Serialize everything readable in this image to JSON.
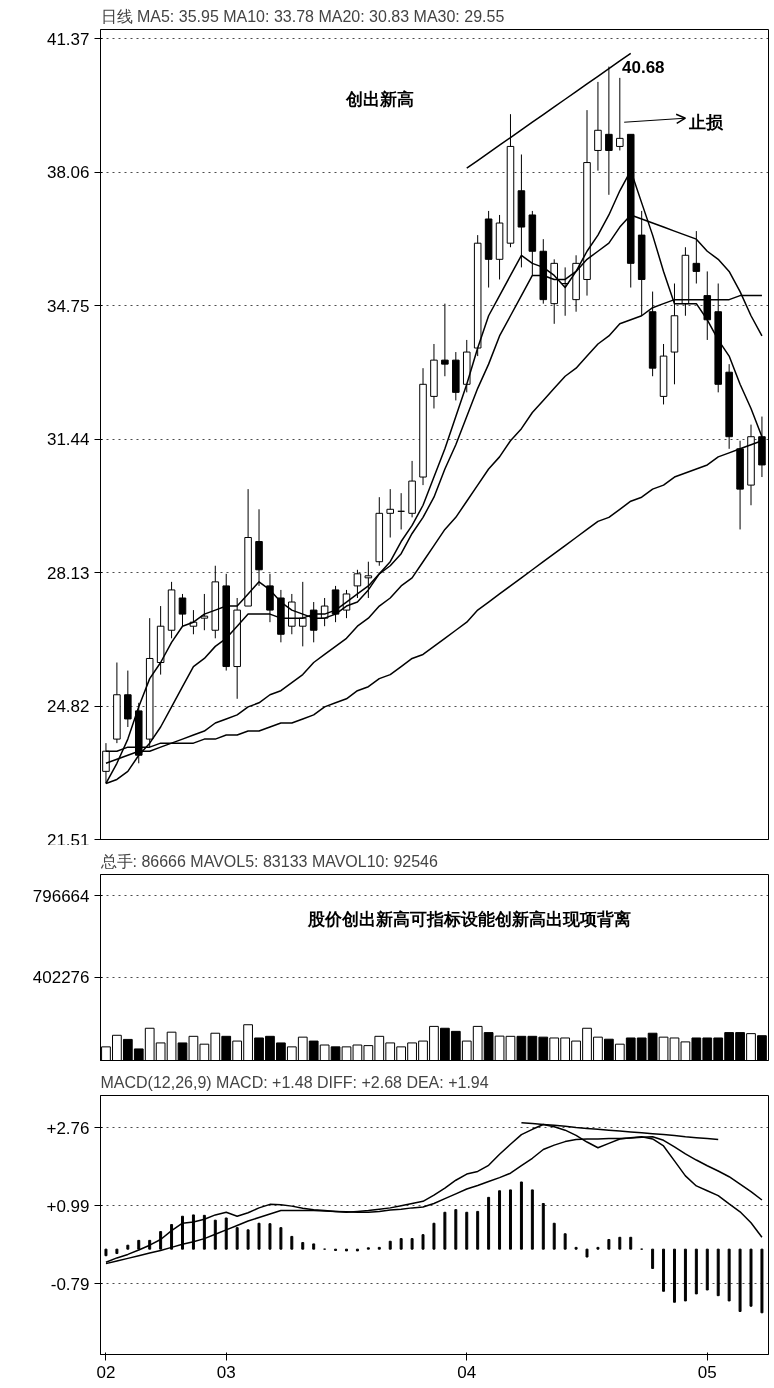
{
  "chart_data": [
    {
      "type": "candlestick",
      "title": "日线 MA5: 35.95 MA10: 33.78 MA20: 30.83 MA30: 29.55",
      "tick_labels": "y",
      "grid": "y",
      "ylim": [
        21.51,
        41.6
      ],
      "yticks": [
        41.37,
        38.06,
        34.75,
        31.44,
        28.13,
        24.82,
        21.51
      ],
      "categories": [
        "02",
        null,
        null,
        null,
        null,
        null,
        null,
        null,
        null,
        null,
        null,
        "03",
        null,
        null,
        null,
        null,
        null,
        null,
        null,
        null,
        null,
        null,
        null,
        null,
        null,
        null,
        null,
        null,
        null,
        null,
        null,
        null,
        null,
        "04",
        null,
        null,
        null,
        null,
        null,
        null,
        null,
        null,
        null,
        null,
        null,
        null,
        null,
        null,
        null,
        null,
        null,
        null,
        null,
        null,
        null,
        "05",
        null,
        null,
        null,
        null,
        null
      ],
      "ohlc": [
        [
          23.2,
          23.9,
          22.9,
          23.7
        ],
        [
          24.0,
          25.9,
          23.9,
          25.1
        ],
        [
          25.1,
          25.7,
          24.3,
          24.5
        ],
        [
          24.7,
          24.9,
          23.4,
          23.6
        ],
        [
          24.0,
          27.0,
          23.8,
          26.0
        ],
        [
          25.9,
          27.3,
          25.6,
          26.8
        ],
        [
          26.7,
          27.9,
          26.5,
          27.7
        ],
        [
          27.5,
          27.6,
          26.8,
          27.1
        ],
        [
          26.8,
          27.2,
          26.6,
          26.9
        ],
        [
          27.0,
          27.6,
          26.7,
          27.05
        ],
        [
          26.7,
          28.3,
          26.5,
          27.9
        ],
        [
          27.8,
          28.1,
          25.7,
          25.8
        ],
        [
          25.8,
          27.5,
          25.0,
          27.2
        ],
        [
          27.3,
          30.2,
          27.3,
          29.0
        ],
        [
          28.9,
          29.7,
          27.8,
          28.2
        ],
        [
          27.8,
          28.1,
          26.9,
          27.2
        ],
        [
          27.5,
          27.7,
          26.4,
          26.6
        ],
        [
          26.8,
          27.6,
          26.6,
          27.4
        ],
        [
          26.8,
          27.9,
          26.3,
          27.0
        ],
        [
          27.2,
          27.4,
          26.4,
          26.7
        ],
        [
          27.0,
          27.5,
          26.8,
          27.3
        ],
        [
          27.7,
          27.8,
          26.9,
          27.1
        ],
        [
          27.2,
          27.7,
          27.0,
          27.6
        ],
        [
          27.8,
          28.2,
          27.5,
          28.1
        ],
        [
          28.0,
          28.4,
          27.5,
          28.05
        ],
        [
          28.4,
          30.0,
          28.3,
          29.6
        ],
        [
          29.6,
          30.2,
          29.0,
          29.7
        ],
        [
          29.65,
          30.1,
          29.2,
          29.65
        ],
        [
          29.6,
          30.9,
          29.5,
          30.4
        ],
        [
          30.5,
          33.2,
          30.3,
          32.8
        ],
        [
          32.5,
          33.8,
          32.2,
          33.4
        ],
        [
          33.4,
          34.8,
          33.0,
          33.3
        ],
        [
          33.4,
          33.6,
          32.4,
          32.6
        ],
        [
          32.8,
          33.9,
          32.6,
          33.6
        ],
        [
          33.7,
          36.5,
          33.5,
          36.3
        ],
        [
          36.9,
          37.1,
          35.2,
          35.9
        ],
        [
          35.9,
          37.0,
          35.4,
          36.8
        ],
        [
          36.3,
          39.5,
          36.2,
          38.7
        ],
        [
          37.6,
          38.5,
          35.7,
          36.7
        ],
        [
          37.0,
          37.1,
          35.5,
          36.1
        ],
        [
          36.1,
          36.4,
          34.8,
          34.9
        ],
        [
          34.8,
          35.9,
          34.3,
          35.8
        ],
        [
          35.3,
          35.7,
          34.5,
          35.3
        ],
        [
          34.9,
          36.0,
          34.6,
          35.8
        ],
        [
          35.4,
          39.6,
          35.0,
          38.3
        ],
        [
          38.6,
          40.3,
          38.1,
          39.1
        ],
        [
          39.0,
          40.68,
          37.5,
          38.6
        ],
        [
          38.7,
          40.4,
          38.6,
          38.9
        ],
        [
          39.0,
          39.0,
          35.2,
          35.8
        ],
        [
          36.5,
          37.1,
          34.5,
          35.4
        ],
        [
          34.6,
          35.1,
          33.0,
          33.2
        ],
        [
          32.5,
          33.8,
          32.3,
          33.5
        ],
        [
          33.6,
          35.3,
          32.8,
          34.5
        ],
        [
          34.8,
          36.2,
          34.5,
          36.0
        ],
        [
          35.8,
          36.6,
          35.3,
          35.6
        ],
        [
          35.0,
          35.6,
          33.9,
          34.4
        ],
        [
          34.6,
          35.3,
          32.6,
          32.8
        ],
        [
          33.1,
          33.3,
          31.2,
          31.5
        ],
        [
          31.2,
          31.4,
          29.2,
          30.2
        ],
        [
          30.3,
          31.8,
          29.8,
          31.5
        ],
        [
          31.5,
          32.0,
          30.5,
          30.8
        ]
      ],
      "series": [
        {
          "type": "line",
          "color": "#000000",
          "values": [
            22.9,
            23.4,
            24.0,
            24.8,
            25.5,
            25.9,
            26.4,
            26.8,
            26.9,
            27.1,
            27.2,
            27.3,
            27.3,
            27.6,
            27.9,
            27.7,
            27.4,
            27.2,
            27.1,
            27.0,
            27.0,
            27.1,
            27.3,
            27.4,
            27.7,
            28.1,
            28.4,
            28.9,
            29.3,
            29.8,
            30.5,
            31.2,
            32.0,
            32.8,
            33.7,
            34.5,
            35.0,
            35.5,
            36.0,
            35.8,
            35.7,
            35.5,
            35.2,
            35.6,
            36.1,
            36.5,
            37.0,
            37.6,
            38.1,
            37.3,
            36.5,
            35.6,
            34.8,
            34.8,
            34.8,
            34.4,
            33.9,
            33.5,
            32.8,
            32.2,
            31.5
          ]
        },
        {
          "type": "line",
          "color": "#000000",
          "values": [
            22.9,
            23.0,
            23.2,
            23.6,
            23.9,
            24.3,
            24.8,
            25.3,
            25.8,
            26.0,
            26.3,
            26.5,
            26.8,
            27.1,
            27.1,
            27.1,
            27.0,
            27.0,
            27.0,
            27.1,
            27.1,
            27.2,
            27.4,
            27.6,
            27.8,
            28.1,
            28.3,
            28.6,
            29.1,
            29.5,
            30.0,
            30.7,
            31.3,
            32.0,
            32.7,
            33.3,
            34.0,
            34.5,
            35.0,
            35.5,
            35.5,
            35.4,
            35.4,
            35.6,
            35.9,
            36.1,
            36.3,
            36.7,
            37.0,
            36.9,
            36.8,
            36.7,
            36.6,
            36.5,
            36.4,
            36.1,
            35.9,
            35.6,
            35.1,
            34.5,
            34.0
          ]
        },
        {
          "type": "line",
          "color": "#000000",
          "values": [
            23.4,
            23.5,
            23.6,
            23.7,
            23.7,
            23.8,
            23.9,
            24.0,
            24.1,
            24.2,
            24.4,
            24.5,
            24.6,
            24.8,
            24.9,
            25.1,
            25.2,
            25.4,
            25.6,
            25.9,
            26.1,
            26.3,
            26.5,
            26.8,
            27.0,
            27.3,
            27.5,
            27.8,
            28.0,
            28.4,
            28.8,
            29.2,
            29.5,
            29.9,
            30.3,
            30.7,
            31.0,
            31.4,
            31.7,
            32.1,
            32.4,
            32.7,
            33.0,
            33.2,
            33.5,
            33.8,
            34.0,
            34.3,
            34.4,
            34.5,
            34.7,
            34.8,
            34.9,
            34.9,
            34.9,
            34.9,
            34.9,
            34.9,
            35.0,
            35.0,
            35.0
          ]
        },
        {
          "type": "line",
          "color": "#000000",
          "values": [
            23.7,
            23.7,
            23.8,
            23.8,
            23.8,
            23.9,
            23.9,
            23.9,
            23.9,
            24.0,
            24.0,
            24.1,
            24.1,
            24.2,
            24.2,
            24.3,
            24.4,
            24.4,
            24.5,
            24.6,
            24.8,
            24.9,
            25.0,
            25.2,
            25.3,
            25.5,
            25.6,
            25.8,
            26.0,
            26.1,
            26.3,
            26.5,
            26.7,
            26.9,
            27.2,
            27.4,
            27.6,
            27.8,
            28.0,
            28.2,
            28.4,
            28.6,
            28.8,
            29.0,
            29.2,
            29.4,
            29.5,
            29.7,
            29.9,
            30.0,
            30.2,
            30.3,
            30.5,
            30.6,
            30.7,
            30.8,
            31.0,
            31.1,
            31.2,
            31.3,
            31.4
          ]
        },
        {
          "type": "line",
          "color": "#000000",
          "values": [
            null,
            null,
            null,
            null,
            null,
            null,
            null,
            null,
            null,
            null,
            null,
            null,
            null,
            null,
            null,
            null,
            null,
            null,
            null,
            null,
            null,
            null,
            null,
            null,
            null,
            null,
            null,
            null,
            null,
            null,
            null,
            null,
            null,
            38.16,
            38.35,
            38.54,
            38.73,
            38.92,
            39.11,
            39.3,
            39.49,
            39.68,
            39.87,
            40.06,
            40.25,
            40.44,
            40.63,
            40.82,
            41.01,
            null,
            null,
            null,
            null,
            null,
            null,
            null,
            null,
            null,
            null,
            null,
            null
          ]
        }
      ],
      "annotations": [
        "创出新高",
        "40.68",
        "止损"
      ]
    },
    {
      "type": "bar",
      "title": "总手: 86666 MAVOL5: 83133 MAVOL10: 92546",
      "tick_labels": "y",
      "grid": "y",
      "ylim": [
        0,
        900000
      ],
      "yticks": [
        796664,
        402276
      ],
      "categories": [
        "02",
        null,
        null,
        null,
        null,
        null,
        null,
        null,
        null,
        null,
        null,
        "03",
        null,
        null,
        null,
        null,
        null,
        null,
        null,
        null,
        null,
        null,
        null,
        null,
        null,
        null,
        null,
        null,
        null,
        null,
        null,
        null,
        null,
        "04",
        null,
        null,
        null,
        null,
        null,
        null,
        null,
        null,
        null,
        null,
        null,
        null,
        null,
        null,
        null,
        null,
        null,
        null,
        null,
        null,
        null,
        "05",
        null,
        null,
        null,
        null,
        null
      ],
      "values": [
        66000,
        122000,
        102000,
        56000,
        156000,
        85000,
        137000,
        85000,
        117000,
        79000,
        132000,
        117000,
        94000,
        173000,
        109000,
        117000,
        85000,
        66000,
        113000,
        94000,
        75000,
        66000,
        66000,
        75000,
        72000,
        117000,
        85000,
        66000,
        85000,
        94000,
        165000,
        156000,
        141000,
        94000,
        165000,
        135000,
        118000,
        117000,
        117000,
        117000,
        113000,
        109000,
        109000,
        94000,
        156000,
        113000,
        103000,
        79000,
        109000,
        109000,
        132000,
        113000,
        109000,
        90000,
        109000,
        109000,
        109000,
        135000,
        135000,
        130000,
        120000
      ],
      "colors": [
        "#ffffff",
        "#ffffff",
        "#000000",
        "#000000",
        "#ffffff",
        "#ffffff",
        "#ffffff",
        "#000000",
        "#ffffff",
        "#ffffff",
        "#ffffff",
        "#000000",
        "#ffffff",
        "#ffffff",
        "#000000",
        "#000000",
        "#000000",
        "#ffffff",
        "#ffffff",
        "#000000",
        "#ffffff",
        "#000000",
        "#ffffff",
        "#ffffff",
        "#ffffff",
        "#ffffff",
        "#ffffff",
        "#ffffff",
        "#ffffff",
        "#ffffff",
        "#ffffff",
        "#000000",
        "#000000",
        "#ffffff",
        "#ffffff",
        "#000000",
        "#ffffff",
        "#ffffff",
        "#000000",
        "#000000",
        "#000000",
        "#ffffff",
        "#ffffff",
        "#ffffff",
        "#ffffff",
        "#ffffff",
        "#000000",
        "#ffffff",
        "#000000",
        "#000000",
        "#000000",
        "#ffffff",
        "#ffffff",
        "#ffffff",
        "#000000",
        "#000000",
        "#000000",
        "#000000",
        "#000000",
        "#ffffff",
        "#000000"
      ],
      "annotations": [
        "股价创出新高可指标设能创新高出现项背离"
      ]
    },
    {
      "type": "bar",
      "title": "MACD(12,26,9) MACD: +1.48 DIFF: +2.68 DEA: +1.94",
      "grid": "y",
      "ylim": [
        -2.4,
        3.5
      ],
      "yticks": [
        {
          "value": 2.76,
          "label": "+2.76"
        },
        {
          "value": 0.99,
          "label": "+0.99"
        },
        {
          "value": -0.79,
          "label": "-0.79"
        }
      ],
      "categories": [
        "02",
        null,
        null,
        null,
        null,
        null,
        null,
        null,
        null,
        null,
        null,
        "03",
        null,
        null,
        null,
        null,
        null,
        null,
        null,
        null,
        null,
        null,
        null,
        null,
        null,
        null,
        null,
        null,
        null,
        null,
        null,
        null,
        null,
        "04",
        null,
        null,
        null,
        null,
        null,
        null,
        null,
        null,
        null,
        null,
        null,
        null,
        null,
        null,
        null,
        null,
        null,
        null,
        null,
        null,
        null,
        "05",
        null,
        null,
        null,
        null,
        null
      ],
      "series": [
        {
          "type": "bar",
          "color": "#000000",
          "values": [
            -0.15,
            -0.1,
            0.09,
            0.2,
            0.2,
            0.4,
            0.56,
            0.75,
            0.78,
            0.77,
            0.66,
            0.71,
            0.49,
            0.44,
            0.59,
            0.58,
            0.49,
            0.29,
            0.15,
            0.12,
            0.0,
            -0.03,
            -0.04,
            -0.04,
            0.03,
            0.04,
            0.18,
            0.24,
            0.24,
            0.33,
            0.59,
            0.84,
            0.9,
            0.84,
            0.86,
            1.18,
            1.33,
            1.35,
            1.53,
            1.35,
            1.04,
            0.59,
            0.35,
            0.04,
            -0.18,
            0.04,
            0.22,
            0.27,
            0.27,
            0.0,
            -0.44,
            -0.96,
            -1.21,
            -1.18,
            -1.02,
            -0.93,
            -1.06,
            -1.18,
            -1.42,
            -1.3,
            -1.45
          ]
        },
        {
          "type": "line",
          "color": "#000000",
          "values": [
            -0.3,
            -0.2,
            -0.12,
            -0.02,
            0.09,
            0.22,
            0.42,
            0.59,
            0.62,
            0.68,
            0.78,
            0.84,
            0.75,
            0.83,
            0.94,
            1.02,
            1.01,
            0.98,
            0.93,
            0.9,
            0.88,
            0.86,
            0.84,
            0.86,
            0.88,
            0.91,
            0.94,
            0.99,
            1.04,
            1.09,
            1.23,
            1.39,
            1.57,
            1.71,
            1.77,
            1.91,
            2.16,
            2.39,
            2.61,
            2.73,
            2.84,
            2.79,
            2.71,
            2.59,
            2.44,
            2.31,
            2.41,
            2.51,
            2.54,
            2.56,
            2.51,
            2.35,
            2.01,
            1.67,
            1.44,
            1.33,
            1.22,
            1.03,
            0.85,
            0.6,
            0.27
          ]
        },
        {
          "type": "line",
          "color": "#000000",
          "values": [
            -0.33,
            -0.27,
            -0.21,
            -0.15,
            -0.09,
            -0.03,
            0.04,
            0.11,
            0.17,
            0.24,
            0.34,
            0.44,
            0.54,
            0.64,
            0.72,
            0.8,
            0.88,
            0.88,
            0.88,
            0.88,
            0.87,
            0.86,
            0.85,
            0.84,
            0.84,
            0.86,
            0.89,
            0.91,
            0.94,
            0.96,
            1.04,
            1.15,
            1.26,
            1.37,
            1.45,
            1.54,
            1.63,
            1.73,
            1.9,
            2.07,
            2.27,
            2.37,
            2.45,
            2.5,
            2.51,
            2.51,
            2.52,
            2.52,
            2.53,
            2.55,
            2.56,
            2.48,
            2.33,
            2.17,
            2.03,
            1.9,
            1.78,
            1.65,
            1.48,
            1.31,
            1.12
          ]
        },
        {
          "type": "line",
          "color": "#000000",
          "values": [
            null,
            null,
            null,
            null,
            null,
            null,
            null,
            null,
            null,
            null,
            null,
            null,
            null,
            null,
            null,
            null,
            null,
            null,
            null,
            null,
            null,
            null,
            null,
            null,
            null,
            null,
            null,
            null,
            null,
            null,
            null,
            null,
            null,
            null,
            null,
            null,
            null,
            null,
            2.88,
            2.86,
            2.84,
            2.82,
            2.8,
            2.77,
            2.75,
            2.73,
            2.71,
            2.69,
            2.67,
            2.65,
            2.63,
            2.61,
            2.59,
            2.56,
            2.54,
            2.52,
            2.5,
            null,
            null,
            null,
            null
          ]
        }
      ]
    }
  ]
}
